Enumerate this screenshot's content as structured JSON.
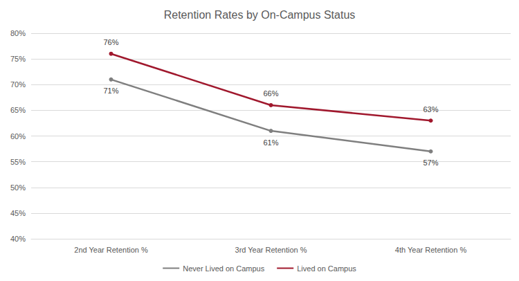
{
  "chart_data": {
    "type": "line",
    "title": "Retention Rates by On-Campus Status",
    "categories": [
      "2nd Year Retention %",
      "3rd Year Retention %",
      "4th Year Retention %"
    ],
    "series": [
      {
        "name": "Never Lived on Campus",
        "color": "#7f7f7f",
        "values": [
          71,
          61,
          57
        ],
        "value_labels": [
          "71%",
          "61%",
          "57%"
        ]
      },
      {
        "name": "Lived on Campus",
        "color": "#a0182d",
        "values": [
          76,
          66,
          63
        ],
        "value_labels": [
          "76%",
          "66%",
          "63%"
        ]
      }
    ],
    "ylim": [
      40,
      80
    ],
    "yticks": [
      {
        "value": 40,
        "label": "40%"
      },
      {
        "value": 45,
        "label": "45%"
      },
      {
        "value": 50,
        "label": "50%"
      },
      {
        "value": 55,
        "label": "55%"
      },
      {
        "value": 60,
        "label": "60%"
      },
      {
        "value": 65,
        "label": "65%"
      },
      {
        "value": 70,
        "label": "70%"
      },
      {
        "value": 75,
        "label": "75%"
      },
      {
        "value": 80,
        "label": "80%"
      }
    ],
    "grid": true,
    "legend": "bottom",
    "data_labels": true,
    "marker": "circle"
  }
}
